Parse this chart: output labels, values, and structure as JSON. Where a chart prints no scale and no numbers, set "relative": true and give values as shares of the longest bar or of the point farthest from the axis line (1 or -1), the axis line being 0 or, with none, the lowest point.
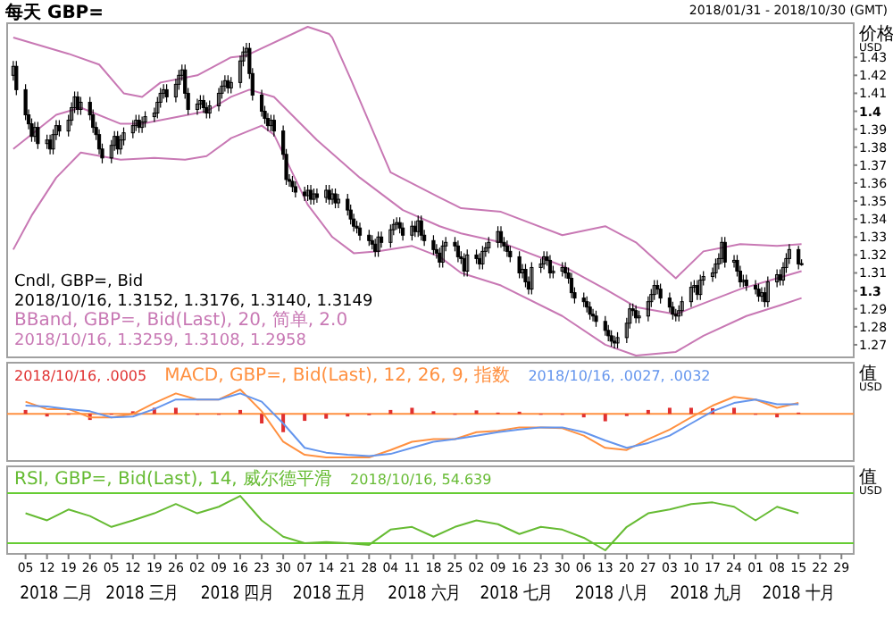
{
  "chart_data": [
    {
      "type": "candlestick",
      "title": "每天 GBP=",
      "subtitle": "2018/01/31 - 2018/10/30 (GMT)",
      "ylabel": "价格 USD",
      "color": "#000000",
      "tick_labels": "y",
      "annotations": [
        "Cndl, GBP=, Bid",
        "2018/10/16, 1.3152, 1.3176, 1.3140, 1.3149",
        "BBand, GBP=, Bid(Last), 20, 简单, 2.0",
        "2018/10/16, 1.3259, 1.3108, 1.2958"
      ],
      "xlim": [
        "2018-01-30",
        "2018-11-02"
      ],
      "ylim": [
        1.263,
        1.449
      ],
      "yticks": [
        1.27,
        1.28,
        1.29,
        1.3,
        1.31,
        1.32,
        1.33,
        1.34,
        1.35,
        1.36,
        1.37,
        1.38,
        1.39,
        1.4,
        1.41,
        1.42,
        1.43
      ],
      "x": [
        "2018-02-01",
        "2018-02-02",
        "2018-02-05",
        "2018-02-06",
        "2018-02-07",
        "2018-02-08",
        "2018-02-09",
        "2018-02-12",
        "2018-02-13",
        "2018-02-14",
        "2018-02-15",
        "2018-02-16",
        "2018-02-19",
        "2018-02-20",
        "2018-02-21",
        "2018-02-22",
        "2018-02-23",
        "2018-02-26",
        "2018-02-27",
        "2018-02-28",
        "2018-03-01",
        "2018-03-02",
        "2018-03-05",
        "2018-03-06",
        "2018-03-07",
        "2018-03-08",
        "2018-03-09",
        "2018-03-12",
        "2018-03-13",
        "2018-03-14",
        "2018-03-15",
        "2018-03-16",
        "2018-03-19",
        "2018-03-20",
        "2018-03-21",
        "2018-03-22",
        "2018-03-23",
        "2018-03-26",
        "2018-03-27",
        "2018-03-28",
        "2018-03-29",
        "2018-03-30",
        "2018-04-02",
        "2018-04-03",
        "2018-04-04",
        "2018-04-05",
        "2018-04-06",
        "2018-04-09",
        "2018-04-10",
        "2018-04-11",
        "2018-04-12",
        "2018-04-13",
        "2018-04-16",
        "2018-04-17",
        "2018-04-18",
        "2018-04-19",
        "2018-04-20",
        "2018-04-23",
        "2018-04-24",
        "2018-04-25",
        "2018-04-26",
        "2018-04-27",
        "2018-04-30",
        "2018-05-01",
        "2018-05-02",
        "2018-05-03",
        "2018-05-04",
        "2018-05-07",
        "2018-05-08",
        "2018-05-09",
        "2018-05-10",
        "2018-05-11",
        "2018-05-14",
        "2018-05-15",
        "2018-05-16",
        "2018-05-17",
        "2018-05-18",
        "2018-05-21",
        "2018-05-22",
        "2018-05-23",
        "2018-05-24",
        "2018-05-25",
        "2018-05-28",
        "2018-05-29",
        "2018-05-30",
        "2018-05-31",
        "2018-06-01",
        "2018-06-04",
        "2018-06-05",
        "2018-06-06",
        "2018-06-07",
        "2018-06-08",
        "2018-06-11",
        "2018-06-12",
        "2018-06-13",
        "2018-06-14",
        "2018-06-15",
        "2018-06-18",
        "2018-06-19",
        "2018-06-20",
        "2018-06-21",
        "2018-06-22",
        "2018-06-25",
        "2018-06-26",
        "2018-06-27",
        "2018-06-28",
        "2018-06-29",
        "2018-07-02",
        "2018-07-03",
        "2018-07-04",
        "2018-07-05",
        "2018-07-06",
        "2018-07-09",
        "2018-07-10",
        "2018-07-11",
        "2018-07-12",
        "2018-07-13",
        "2018-07-16",
        "2018-07-17",
        "2018-07-18",
        "2018-07-19",
        "2018-07-20",
        "2018-07-23",
        "2018-07-24",
        "2018-07-25",
        "2018-07-26",
        "2018-07-27",
        "2018-07-30",
        "2018-07-31",
        "2018-08-01",
        "2018-08-02",
        "2018-08-03",
        "2018-08-06",
        "2018-08-07",
        "2018-08-08",
        "2018-08-09",
        "2018-08-10",
        "2018-08-13",
        "2018-08-14",
        "2018-08-15",
        "2018-08-16",
        "2018-08-17",
        "2018-08-20",
        "2018-08-21",
        "2018-08-22",
        "2018-08-23",
        "2018-08-24",
        "2018-08-27",
        "2018-08-28",
        "2018-08-29",
        "2018-08-30",
        "2018-08-31",
        "2018-09-03",
        "2018-09-04",
        "2018-09-05",
        "2018-09-06",
        "2018-09-07",
        "2018-09-10",
        "2018-09-11",
        "2018-09-12",
        "2018-09-13",
        "2018-09-14",
        "2018-09-17",
        "2018-09-18",
        "2018-09-19",
        "2018-09-20",
        "2018-09-21",
        "2018-09-24",
        "2018-09-25",
        "2018-09-26",
        "2018-09-27",
        "2018-09-28",
        "2018-10-01",
        "2018-10-02",
        "2018-10-03",
        "2018-10-04",
        "2018-10-05",
        "2018-10-08",
        "2018-10-09",
        "2018-10-10",
        "2018-10-11",
        "2018-10-12",
        "2018-10-15",
        "2018-10-16"
      ],
      "ohlc": [
        [
          1.42,
          1.428,
          1.417,
          1.425
        ],
        [
          1.425,
          1.428,
          1.409,
          1.412
        ],
        [
          1.412,
          1.415,
          1.395,
          1.398
        ],
        [
          1.398,
          1.401,
          1.39,
          1.393
        ],
        [
          1.393,
          1.396,
          1.383,
          1.386
        ],
        [
          1.386,
          1.394,
          1.383,
          1.391
        ],
        [
          1.391,
          1.394,
          1.379,
          1.382
        ],
        [
          1.382,
          1.387,
          1.379,
          1.384
        ],
        [
          1.384,
          1.387,
          1.376,
          1.379
        ],
        [
          1.379,
          1.39,
          1.376,
          1.387
        ],
        [
          1.387,
          1.395,
          1.384,
          1.392
        ],
        [
          1.392,
          1.395,
          1.386,
          1.389
        ],
        [
          1.389,
          1.398,
          1.386,
          1.395
        ],
        [
          1.395,
          1.405,
          1.392,
          1.402
        ],
        [
          1.402,
          1.411,
          1.399,
          1.408
        ],
        [
          1.408,
          1.411,
          1.398,
          1.401
        ],
        [
          1.401,
          1.408,
          1.398,
          1.405
        ],
        [
          1.405,
          1.408,
          1.395,
          1.398
        ],
        [
          1.398,
          1.401,
          1.388,
          1.391
        ],
        [
          1.391,
          1.394,
          1.384,
          1.387
        ],
        [
          1.387,
          1.39,
          1.376,
          1.379
        ],
        [
          1.379,
          1.382,
          1.371,
          1.374
        ],
        [
          1.374,
          1.384,
          1.371,
          1.381
        ],
        [
          1.381,
          1.389,
          1.378,
          1.386
        ],
        [
          1.386,
          1.389,
          1.376,
          1.379
        ],
        [
          1.379,
          1.387,
          1.376,
          1.384
        ],
        [
          1.384,
          1.391,
          1.381,
          1.388
        ],
        [
          1.388,
          1.395,
          1.385,
          1.392
        ],
        [
          1.392,
          1.398,
          1.389,
          1.395
        ],
        [
          1.395,
          1.398,
          1.388,
          1.391
        ],
        [
          1.391,
          1.397,
          1.388,
          1.394
        ],
        [
          1.394,
          1.4,
          1.391,
          1.397
        ],
        [
          1.397,
          1.402,
          1.394,
          1.399
        ],
        [
          1.399,
          1.408,
          1.396,
          1.405
        ],
        [
          1.405,
          1.413,
          1.402,
          1.41
        ],
        [
          1.41,
          1.415,
          1.407,
          1.412
        ],
        [
          1.412,
          1.415,
          1.405,
          1.408
        ],
        [
          1.408,
          1.418,
          1.405,
          1.415
        ],
        [
          1.415,
          1.423,
          1.412,
          1.42
        ],
        [
          1.42,
          1.426,
          1.417,
          1.423
        ],
        [
          1.423,
          1.426,
          1.407,
          1.41
        ],
        [
          1.41,
          1.413,
          1.398,
          1.401
        ],
        [
          1.401,
          1.407,
          1.398,
          1.404
        ],
        [
          1.404,
          1.409,
          1.401,
          1.406
        ],
        [
          1.406,
          1.409,
          1.399,
          1.402
        ],
        [
          1.402,
          1.405,
          1.396,
          1.399
        ],
        [
          1.399,
          1.406,
          1.396,
          1.403
        ],
        [
          1.403,
          1.413,
          1.4,
          1.41
        ],
        [
          1.41,
          1.417,
          1.407,
          1.414
        ],
        [
          1.414,
          1.42,
          1.411,
          1.417
        ],
        [
          1.417,
          1.42,
          1.41,
          1.413
        ],
        [
          1.413,
          1.419,
          1.41,
          1.416
        ],
        [
          1.416,
          1.431,
          1.413,
          1.428
        ],
        [
          1.428,
          1.436,
          1.425,
          1.433
        ],
        [
          1.433,
          1.438,
          1.43,
          1.435
        ],
        [
          1.435,
          1.438,
          1.418,
          1.421
        ],
        [
          1.421,
          1.424,
          1.406,
          1.409
        ],
        [
          1.409,
          1.412,
          1.397,
          1.4
        ],
        [
          1.4,
          1.403,
          1.393,
          1.396
        ],
        [
          1.396,
          1.399,
          1.389,
          1.392
        ],
        [
          1.392,
          1.398,
          1.389,
          1.395
        ],
        [
          1.395,
          1.398,
          1.386,
          1.389
        ],
        [
          1.389,
          1.392,
          1.373,
          1.376
        ],
        [
          1.376,
          1.379,
          1.359,
          1.362
        ],
        [
          1.362,
          1.365,
          1.358,
          1.361
        ],
        [
          1.361,
          1.364,
          1.355,
          1.358
        ],
        [
          1.358,
          1.361,
          1.352,
          1.355
        ],
        [
          1.355,
          1.358,
          1.35,
          1.353
        ],
        [
          1.353,
          1.359,
          1.35,
          1.356
        ],
        [
          1.356,
          1.359,
          1.348,
          1.351
        ],
        [
          1.351,
          1.357,
          1.348,
          1.354
        ],
        [
          1.354,
          1.357,
          1.349,
          1.352
        ],
        [
          1.352,
          1.359,
          1.349,
          1.356
        ],
        [
          1.356,
          1.359,
          1.348,
          1.351
        ],
        [
          1.351,
          1.357,
          1.348,
          1.354
        ],
        [
          1.354,
          1.357,
          1.346,
          1.349
        ],
        [
          1.349,
          1.354,
          1.346,
          1.351
        ],
        [
          1.351,
          1.354,
          1.342,
          1.345
        ],
        [
          1.345,
          1.348,
          1.337,
          1.34
        ],
        [
          1.34,
          1.343,
          1.333,
          1.336
        ],
        [
          1.336,
          1.339,
          1.332,
          1.335
        ],
        [
          1.335,
          1.338,
          1.328,
          1.331
        ],
        [
          1.331,
          1.334,
          1.325,
          1.328
        ],
        [
          1.328,
          1.331,
          1.323,
          1.326
        ],
        [
          1.326,
          1.329,
          1.319,
          1.322
        ],
        [
          1.322,
          1.333,
          1.319,
          1.33
        ],
        [
          1.33,
          1.333,
          1.324,
          1.327
        ],
        [
          1.327,
          1.337,
          1.324,
          1.334
        ],
        [
          1.334,
          1.34,
          1.331,
          1.337
        ],
        [
          1.337,
          1.341,
          1.334,
          1.338
        ],
        [
          1.338,
          1.341,
          1.332,
          1.335
        ],
        [
          1.335,
          1.338,
          1.328,
          1.331
        ],
        [
          1.331,
          1.339,
          1.328,
          1.336
        ],
        [
          1.336,
          1.339,
          1.33,
          1.333
        ],
        [
          1.333,
          1.342,
          1.33,
          1.339
        ],
        [
          1.339,
          1.342,
          1.328,
          1.331
        ],
        [
          1.331,
          1.334,
          1.325,
          1.328
        ],
        [
          1.328,
          1.331,
          1.32,
          1.323
        ],
        [
          1.323,
          1.326,
          1.318,
          1.321
        ],
        [
          1.321,
          1.324,
          1.313,
          1.316
        ],
        [
          1.316,
          1.328,
          1.313,
          1.325
        ],
        [
          1.325,
          1.33,
          1.322,
          1.327
        ],
        [
          1.327,
          1.33,
          1.322,
          1.325
        ],
        [
          1.325,
          1.328,
          1.316,
          1.319
        ],
        [
          1.319,
          1.322,
          1.315,
          1.318
        ],
        [
          1.318,
          1.321,
          1.308,
          1.311
        ],
        [
          1.311,
          1.323,
          1.308,
          1.32
        ],
        [
          1.32,
          1.323,
          1.315,
          1.318
        ],
        [
          1.318,
          1.321,
          1.312,
          1.315
        ],
        [
          1.315,
          1.325,
          1.312,
          1.322
        ],
        [
          1.322,
          1.327,
          1.319,
          1.324
        ],
        [
          1.324,
          1.33,
          1.321,
          1.327
        ],
        [
          1.327,
          1.336,
          1.324,
          1.333
        ],
        [
          1.333,
          1.336,
          1.324,
          1.327
        ],
        [
          1.327,
          1.33,
          1.322,
          1.325
        ],
        [
          1.325,
          1.328,
          1.319,
          1.322
        ],
        [
          1.322,
          1.325,
          1.316,
          1.319
        ],
        [
          1.319,
          1.322,
          1.307,
          1.31
        ],
        [
          1.31,
          1.315,
          1.307,
          1.312
        ],
        [
          1.312,
          1.315,
          1.302,
          1.305
        ],
        [
          1.305,
          1.308,
          1.298,
          1.301
        ],
        [
          1.301,
          1.316,
          1.298,
          1.313
        ],
        [
          1.313,
          1.318,
          1.31,
          1.315
        ],
        [
          1.315,
          1.322,
          1.312,
          1.319
        ],
        [
          1.319,
          1.322,
          1.314,
          1.317
        ],
        [
          1.317,
          1.32,
          1.307,
          1.31
        ],
        [
          1.31,
          1.314,
          1.307,
          1.311
        ],
        [
          1.311,
          1.316,
          1.308,
          1.313
        ],
        [
          1.313,
          1.316,
          1.307,
          1.31
        ],
        [
          1.31,
          1.313,
          1.304,
          1.307
        ],
        [
          1.307,
          1.31,
          1.296,
          1.299
        ],
        [
          1.299,
          1.302,
          1.293,
          1.296
        ],
        [
          1.296,
          1.299,
          1.291,
          1.294
        ],
        [
          1.294,
          1.297,
          1.288,
          1.291
        ],
        [
          1.291,
          1.294,
          1.284,
          1.287
        ],
        [
          1.287,
          1.29,
          1.283,
          1.286
        ],
        [
          1.286,
          1.289,
          1.28,
          1.283
        ],
        [
          1.283,
          1.286,
          1.275,
          1.278
        ],
        [
          1.278,
          1.281,
          1.272,
          1.275
        ],
        [
          1.275,
          1.278,
          1.269,
          1.272
        ],
        [
          1.272,
          1.275,
          1.268,
          1.271
        ],
        [
          1.271,
          1.277,
          1.268,
          1.274
        ],
        [
          1.274,
          1.285,
          1.271,
          1.282
        ],
        [
          1.282,
          1.293,
          1.279,
          1.29
        ],
        [
          1.29,
          1.293,
          1.286,
          1.289
        ],
        [
          1.289,
          1.292,
          1.282,
          1.285
        ],
        [
          1.285,
          1.289,
          1.282,
          1.286
        ],
        [
          1.286,
          1.297,
          1.283,
          1.294
        ],
        [
          1.294,
          1.301,
          1.291,
          1.298
        ],
        [
          1.298,
          1.306,
          1.295,
          1.303
        ],
        [
          1.303,
          1.306,
          1.298,
          1.301
        ],
        [
          1.301,
          1.304,
          1.293,
          1.296
        ],
        [
          1.296,
          1.299,
          1.288,
          1.291
        ],
        [
          1.291,
          1.294,
          1.284,
          1.287
        ],
        [
          1.287,
          1.29,
          1.283,
          1.286
        ],
        [
          1.286,
          1.292,
          1.283,
          1.289
        ],
        [
          1.289,
          1.297,
          1.286,
          1.294
        ],
        [
          1.294,
          1.305,
          1.291,
          1.302
        ],
        [
          1.302,
          1.306,
          1.299,
          1.303
        ],
        [
          1.303,
          1.306,
          1.295,
          1.298
        ],
        [
          1.298,
          1.309,
          1.295,
          1.306
        ],
        [
          1.306,
          1.311,
          1.303,
          1.308
        ],
        [
          1.308,
          1.313,
          1.305,
          1.31
        ],
        [
          1.31,
          1.318,
          1.307,
          1.315
        ],
        [
          1.315,
          1.321,
          1.312,
          1.318
        ],
        [
          1.318,
          1.33,
          1.315,
          1.327
        ],
        [
          1.327,
          1.33,
          1.313,
          1.316
        ],
        [
          1.316,
          1.32,
          1.313,
          1.317
        ],
        [
          1.317,
          1.32,
          1.308,
          1.311
        ],
        [
          1.311,
          1.314,
          1.302,
          1.305
        ],
        [
          1.305,
          1.309,
          1.302,
          1.306
        ],
        [
          1.306,
          1.309,
          1.3,
          1.303
        ],
        [
          1.303,
          1.306,
          1.298,
          1.301
        ],
        [
          1.301,
          1.304,
          1.294,
          1.297
        ],
        [
          1.297,
          1.302,
          1.294,
          1.299
        ],
        [
          1.299,
          1.302,
          1.291,
          1.294
        ],
        [
          1.294,
          1.308,
          1.291,
          1.305
        ],
        [
          1.305,
          1.312,
          1.302,
          1.309
        ],
        [
          1.309,
          1.312,
          1.303,
          1.306
        ],
        [
          1.306,
          1.316,
          1.303,
          1.313
        ],
        [
          1.313,
          1.321,
          1.31,
          1.318
        ],
        [
          1.318,
          1.326,
          1.315,
          1.323
        ],
        [
          1.323,
          1.325,
          1.312,
          1.315
        ],
        [
          1.3152,
          1.3176,
          1.314,
          1.3149
        ]
      ],
      "series": [
        {
          "type": "line",
          "color": "#c878b4",
          "x": [
            "2018-02-01",
            "2018-02-19",
            "2018-03-01",
            "2018-03-09",
            "2018-03-15",
            "2018-03-21",
            "2018-04-02",
            "2018-04-13",
            "2018-04-18",
            "2018-05-08",
            "2018-05-15",
            "2018-05-16",
            "2018-05-22",
            "2018-06-04",
            "2018-06-20",
            "2018-06-27",
            "2018-07-10",
            "2018-07-30",
            "2018-08-13",
            "2018-08-23",
            "2018-09-05",
            "2018-09-14",
            "2018-09-26",
            "2018-10-08",
            "2018-10-16"
          ],
          "values": [
            1.441,
            1.432,
            1.426,
            1.41,
            1.408,
            1.416,
            1.42,
            1.43,
            1.431,
            1.447,
            1.443,
            1.441,
            1.418,
            1.366,
            1.352,
            1.346,
            1.344,
            1.331,
            1.336,
            1.327,
            1.307,
            1.322,
            1.326,
            1.325,
            1.326
          ]
        },
        {
          "type": "line",
          "color": "#c878b4",
          "x": [
            "2018-02-01",
            "2018-02-15",
            "2018-02-23",
            "2018-03-08",
            "2018-03-15",
            "2018-03-27",
            "2018-04-05",
            "2018-04-13",
            "2018-04-19",
            "2018-04-27",
            "2018-05-11",
            "2018-05-25",
            "2018-06-08",
            "2018-06-20",
            "2018-06-27",
            "2018-07-10",
            "2018-07-30",
            "2018-08-13",
            "2018-08-23",
            "2018-09-05",
            "2018-09-14",
            "2018-09-26",
            "2018-10-08",
            "2018-10-16"
          ],
          "values": [
            1.379,
            1.398,
            1.402,
            1.393,
            1.393,
            1.397,
            1.4,
            1.408,
            1.412,
            1.408,
            1.384,
            1.363,
            1.345,
            1.336,
            1.332,
            1.327,
            1.314,
            1.301,
            1.291,
            1.287,
            1.293,
            1.301,
            1.307,
            1.311
          ]
        },
        {
          "type": "line",
          "color": "#c878b4",
          "x": [
            "2018-02-01",
            "2018-02-07",
            "2018-02-15",
            "2018-02-23",
            "2018-03-08",
            "2018-03-19",
            "2018-03-29",
            "2018-04-05",
            "2018-04-13",
            "2018-04-23",
            "2018-04-27",
            "2018-05-08",
            "2018-05-16",
            "2018-05-23",
            "2018-05-31",
            "2018-06-11",
            "2018-06-20",
            "2018-06-27",
            "2018-07-10",
            "2018-07-30",
            "2018-08-13",
            "2018-08-23",
            "2018-09-05",
            "2018-09-14",
            "2018-09-28",
            "2018-10-09",
            "2018-10-16"
          ],
          "values": [
            1.323,
            1.342,
            1.363,
            1.377,
            1.373,
            1.374,
            1.373,
            1.375,
            1.385,
            1.392,
            1.387,
            1.348,
            1.33,
            1.321,
            1.322,
            1.325,
            1.319,
            1.31,
            1.303,
            1.286,
            1.27,
            1.264,
            1.266,
            1.275,
            1.286,
            1.292,
            1.296
          ]
        }
      ]
    },
    {
      "type": "line",
      "relative": true,
      "tick_labels": false,
      "ylabel": "值 USD",
      "xlim": [
        "2018-01-30",
        "2018-11-02"
      ],
      "annotations": [
        "2018/10/16, .0005",
        "MACD, GBP=, Bid(Last), 12, 26, 9, 指数",
        "2018/10/16, .0027, .0032"
      ],
      "ref_lines": [
        {
          "axis": "y",
          "value": 0,
          "color": "#ff9040"
        }
      ],
      "series": [
        {
          "type": "bar",
          "color": "#e03030",
          "x": [
            "2018-02-05",
            "2018-02-12",
            "2018-02-19",
            "2018-02-26",
            "2018-03-05",
            "2018-03-12",
            "2018-03-19",
            "2018-03-26",
            "2018-04-02",
            "2018-04-09",
            "2018-04-16",
            "2018-04-23",
            "2018-04-30",
            "2018-05-07",
            "2018-05-14",
            "2018-05-21",
            "2018-05-28",
            "2018-06-04",
            "2018-06-11",
            "2018-06-18",
            "2018-06-25",
            "2018-07-02",
            "2018-07-09",
            "2018-07-16",
            "2018-07-23",
            "2018-07-30",
            "2018-08-06",
            "2018-08-13",
            "2018-08-20",
            "2018-08-27",
            "2018-09-03",
            "2018-09-10",
            "2018-09-17",
            "2018-09-24",
            "2018-10-01",
            "2018-10-08",
            "2018-10-15"
          ],
          "values": [
            0.09,
            -0.06,
            0,
            -0.14,
            0,
            0.06,
            0.14,
            0.14,
            0,
            0,
            0.09,
            -0.22,
            -0.42,
            -0.16,
            -0.11,
            -0.06,
            -0.03,
            0.09,
            0.14,
            0.06,
            0,
            0.08,
            0.03,
            0.05,
            0,
            -0.02,
            -0.08,
            -0.17,
            -0.05,
            0.09,
            0.14,
            0.14,
            0.13,
            0.14,
            0,
            -0.08,
            0.03
          ]
        },
        {
          "type": "line",
          "color": "#ff9040",
          "x": [
            "2018-02-05",
            "2018-02-12",
            "2018-02-19",
            "2018-02-26",
            "2018-03-05",
            "2018-03-12",
            "2018-03-19",
            "2018-03-26",
            "2018-04-02",
            "2018-04-09",
            "2018-04-16",
            "2018-04-23",
            "2018-04-30",
            "2018-05-07",
            "2018-05-14",
            "2018-05-21",
            "2018-05-28",
            "2018-06-04",
            "2018-06-11",
            "2018-06-18",
            "2018-06-25",
            "2018-07-02",
            "2018-07-09",
            "2018-07-16",
            "2018-07-23",
            "2018-07-30",
            "2018-08-06",
            "2018-08-13",
            "2018-08-20",
            "2018-08-27",
            "2018-09-03",
            "2018-09-10",
            "2018-09-17",
            "2018-09-24",
            "2018-10-01",
            "2018-10-08",
            "2018-10-15"
          ],
          "values": [
            0.28,
            0.11,
            0.11,
            -0.08,
            -0.08,
            0,
            0.25,
            0.47,
            0.33,
            0.33,
            0.56,
            0.06,
            -0.64,
            -0.94,
            -1,
            -1,
            -1,
            -0.83,
            -0.64,
            -0.58,
            -0.58,
            -0.42,
            -0.39,
            -0.31,
            -0.31,
            -0.33,
            -0.5,
            -0.78,
            -0.83,
            -0.58,
            -0.36,
            -0.08,
            0.19,
            0.39,
            0.33,
            0.14,
            0.25
          ]
        },
        {
          "type": "line",
          "color": "#6495ed",
          "x": [
            "2018-02-05",
            "2018-02-12",
            "2018-02-19",
            "2018-02-26",
            "2018-03-05",
            "2018-03-12",
            "2018-03-19",
            "2018-03-26",
            "2018-04-02",
            "2018-04-09",
            "2018-04-16",
            "2018-04-23",
            "2018-04-30",
            "2018-05-07",
            "2018-05-14",
            "2018-05-21",
            "2018-05-28",
            "2018-06-04",
            "2018-06-11",
            "2018-06-18",
            "2018-06-25",
            "2018-07-02",
            "2018-07-09",
            "2018-07-16",
            "2018-07-23",
            "2018-07-30",
            "2018-08-06",
            "2018-08-13",
            "2018-08-20",
            "2018-08-27",
            "2018-09-03",
            "2018-09-10",
            "2018-09-17",
            "2018-09-24",
            "2018-10-01",
            "2018-10-08",
            "2018-10-15"
          ],
          "values": [
            0.19,
            0.17,
            0.11,
            0.06,
            -0.08,
            -0.06,
            0.11,
            0.33,
            0.33,
            0.33,
            0.47,
            0.28,
            -0.22,
            -0.78,
            -0.89,
            -0.94,
            -0.97,
            -0.92,
            -0.78,
            -0.64,
            -0.58,
            -0.5,
            -0.42,
            -0.36,
            -0.31,
            -0.31,
            -0.42,
            -0.61,
            -0.78,
            -0.67,
            -0.5,
            -0.22,
            0.06,
            0.25,
            0.33,
            0.22,
            0.22
          ]
        }
      ]
    },
    {
      "type": "line",
      "relative": true,
      "tick_labels": "x",
      "ylabel": "值 USD",
      "xlim": [
        "2018-01-30",
        "2018-11-02"
      ],
      "annotations": [
        "RSI, GBP=, Bid(Last), 14, 威尔德平滑",
        "2018/10/16, 54.639"
      ],
      "ref_lines": [
        {
          "axis": "y",
          "value": 1.05,
          "color": "#66cc33"
        },
        {
          "axis": "y",
          "value": 0.13,
          "color": "#66cc33"
        }
      ],
      "series": [
        {
          "type": "line",
          "color": "#66bb33",
          "x": [
            "2018-02-05",
            "2018-02-12",
            "2018-02-19",
            "2018-02-26",
            "2018-03-05",
            "2018-03-12",
            "2018-03-19",
            "2018-03-26",
            "2018-04-02",
            "2018-04-09",
            "2018-04-16",
            "2018-04-23",
            "2018-04-30",
            "2018-05-07",
            "2018-05-14",
            "2018-05-21",
            "2018-05-28",
            "2018-06-04",
            "2018-06-11",
            "2018-06-18",
            "2018-06-25",
            "2018-07-02",
            "2018-07-09",
            "2018-07-16",
            "2018-07-23",
            "2018-07-30",
            "2018-08-06",
            "2018-08-13",
            "2018-08-20",
            "2018-08-27",
            "2018-09-03",
            "2018-09-10",
            "2018-09-17",
            "2018-09-24",
            "2018-10-01",
            "2018-10-08",
            "2018-10-15"
          ],
          "values": [
            0.68,
            0.55,
            0.75,
            0.63,
            0.43,
            0.55,
            0.68,
            0.85,
            0.68,
            0.8,
            1,
            0.55,
            0.25,
            0.13,
            0.15,
            0.13,
            0.1,
            0.38,
            0.43,
            0.25,
            0.43,
            0.55,
            0.48,
            0.3,
            0.43,
            0.38,
            0.23,
            0,
            0.43,
            0.68,
            0.75,
            0.85,
            0.88,
            0.8,
            0.55,
            0.8,
            0.68
          ]
        }
      ],
      "xticks": [
        {
          "value": "2018-02-05",
          "label": "05"
        },
        {
          "value": "2018-02-12",
          "label": "12"
        },
        {
          "value": "2018-02-19",
          "label": "19"
        },
        {
          "value": "2018-02-26",
          "label": "26"
        },
        {
          "value": "2018-03-05",
          "label": "05"
        },
        {
          "value": "2018-03-12",
          "label": "12"
        },
        {
          "value": "2018-03-19",
          "label": "19"
        },
        {
          "value": "2018-03-26",
          "label": "26"
        },
        {
          "value": "2018-04-02",
          "label": "02"
        },
        {
          "value": "2018-04-09",
          "label": "09"
        },
        {
          "value": "2018-04-16",
          "label": "16"
        },
        {
          "value": "2018-04-23",
          "label": "23"
        },
        {
          "value": "2018-04-30",
          "label": "30"
        },
        {
          "value": "2018-05-07",
          "label": "07"
        },
        {
          "value": "2018-05-14",
          "label": "14"
        },
        {
          "value": "2018-05-21",
          "label": "21"
        },
        {
          "value": "2018-05-28",
          "label": "28"
        },
        {
          "value": "2018-06-04",
          "label": "04"
        },
        {
          "value": "2018-06-11",
          "label": "11"
        },
        {
          "value": "2018-06-18",
          "label": "18"
        },
        {
          "value": "2018-06-25",
          "label": "25"
        },
        {
          "value": "2018-07-02",
          "label": "02"
        },
        {
          "value": "2018-07-09",
          "label": "09"
        },
        {
          "value": "2018-07-16",
          "label": "16"
        },
        {
          "value": "2018-07-23",
          "label": "23"
        },
        {
          "value": "2018-07-30",
          "label": "30"
        },
        {
          "value": "2018-08-06",
          "label": "06"
        },
        {
          "value": "2018-08-13",
          "label": "13"
        },
        {
          "value": "2018-08-20",
          "label": "20"
        },
        {
          "value": "2018-08-27",
          "label": "27"
        },
        {
          "value": "2018-09-03",
          "label": "03"
        },
        {
          "value": "2018-09-10",
          "label": "10"
        },
        {
          "value": "2018-09-17",
          "label": "17"
        },
        {
          "value": "2018-09-24",
          "label": "24"
        },
        {
          "value": "2018-10-01",
          "label": "01"
        },
        {
          "value": "2018-10-08",
          "label": "08"
        },
        {
          "value": "2018-10-15",
          "label": "15"
        },
        {
          "value": "2018-10-22",
          "label": "22"
        },
        {
          "value": "2018-10-29",
          "label": "29"
        }
      ],
      "x2lim": [
        "2018-01-30",
        "2018-11-02"
      ],
      "x2ticks": [
        {
          "value": "2018-02-15",
          "label": "2018 二月"
        },
        {
          "value": "2018-03-15",
          "label": "2018 三月"
        },
        {
          "value": "2018-04-15",
          "label": "2018 四月"
        },
        {
          "value": "2018-05-15",
          "label": "2018 五月"
        },
        {
          "value": "2018-06-15",
          "label": "2018 六月"
        },
        {
          "value": "2018-07-15",
          "label": "2018 七月"
        },
        {
          "value": "2018-08-15",
          "label": "2018 八月"
        },
        {
          "value": "2018-09-15",
          "label": "2018 九月"
        },
        {
          "value": "2018-10-15",
          "label": "2018 十月"
        }
      ]
    }
  ]
}
